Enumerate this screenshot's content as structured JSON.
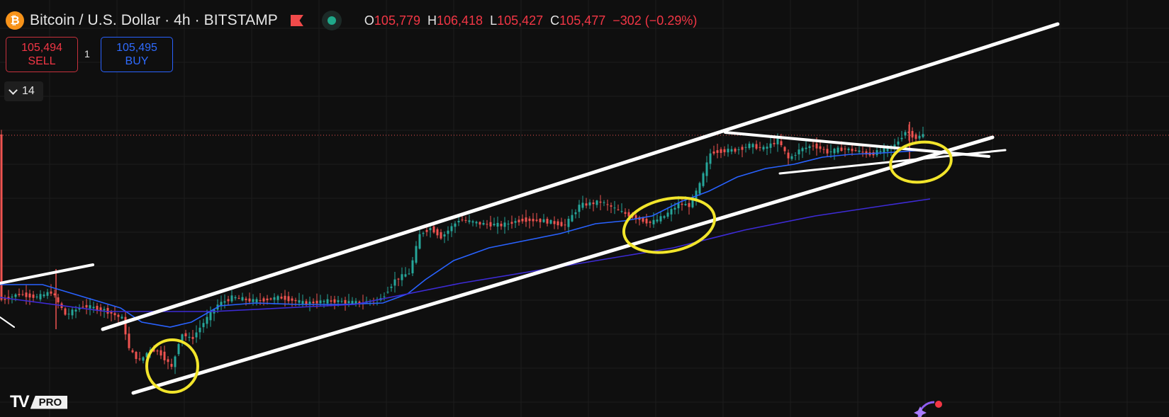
{
  "header": {
    "coin_icon": "bitcoin-icon",
    "coin_glyph": "₿",
    "symbol_title": "Bitcoin / U.S. Dollar · 4h · BITSTAMP",
    "flag_icon": "flag-icon",
    "status_icon": "market-status-dot",
    "ohlc": {
      "open_label": "O",
      "open_value": "105,779",
      "high_label": "H",
      "high_value": "106,418",
      "low_label": "L",
      "low_value": "105,427",
      "close_label": "C",
      "close_value": "105,477",
      "change": "−302 (−0.29%)"
    }
  },
  "trade": {
    "sell_price": "105,494",
    "sell_label": "SELL",
    "spread": "1",
    "buy_price": "105,495",
    "buy_label": "BUY"
  },
  "indicators": {
    "collapse_icon": "chevron-down-icon",
    "count": "14"
  },
  "branding": {
    "logo_mark": "TV",
    "logo_badge": "PRO"
  },
  "colors": {
    "background": "#0f0f0f",
    "candle_up": "#26a69a",
    "candle_down": "#ef5350",
    "ma_fast": "#2962ff",
    "ma_slow": "#3d2bd6",
    "trendline": "#ffffff",
    "highlight": "#f2e52b",
    "price_line": "#ef5350"
  },
  "chart_data": {
    "type": "candlestick",
    "symbol": "Bitcoin / U.S. Dollar",
    "interval": "4h",
    "exchange": "BITSTAMP",
    "grid": true,
    "last_close": 105477,
    "moving_averages": [
      "fast",
      "slow"
    ],
    "annotations": [
      "ascending channel",
      "trendlines",
      "highlight circles"
    ]
  }
}
